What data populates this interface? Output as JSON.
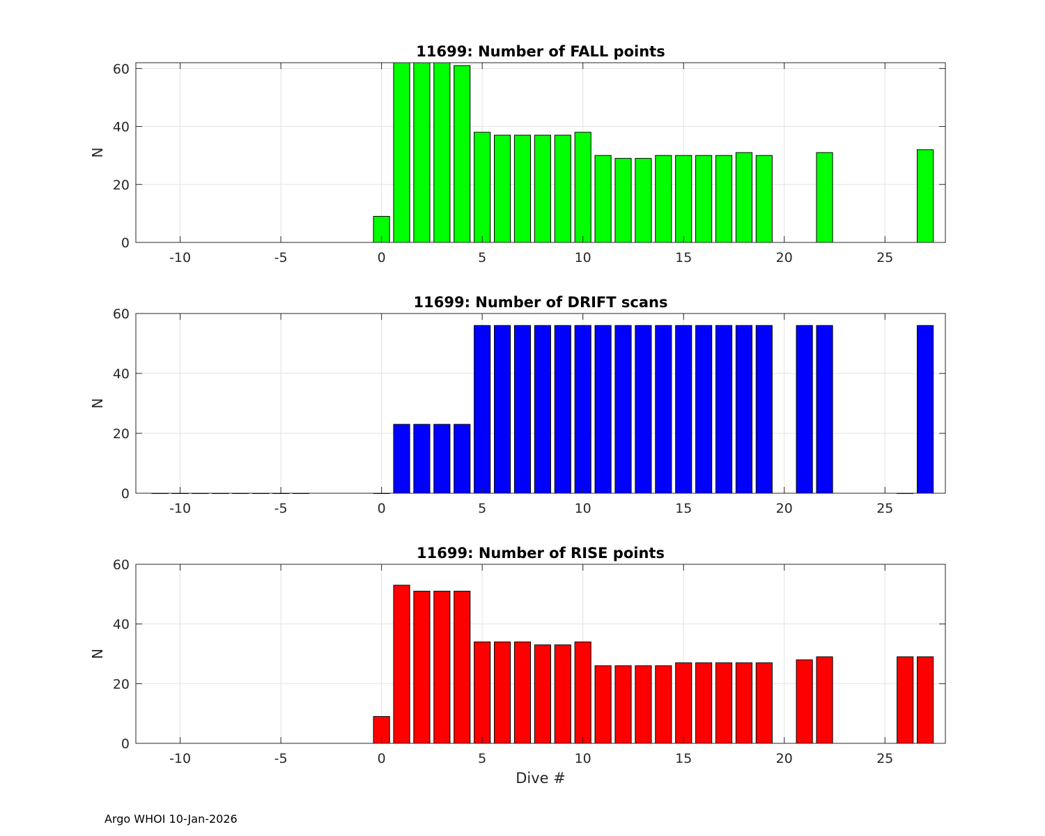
{
  "footer": "Argo WHOI 10-Jan-2026",
  "chart_data": [
    {
      "type": "bar",
      "title": "11699: Number of FALL points",
      "xlabel": "",
      "ylabel": "N",
      "color": "#00ff00",
      "xlim": [
        -12.2,
        28
      ],
      "ylim": [
        0,
        62
      ],
      "xticks": [
        -10,
        -5,
        0,
        5,
        10,
        15,
        20,
        25
      ],
      "xtick_labels": [
        "-10",
        "-5",
        "0",
        "5",
        "10",
        "15",
        "20",
        "25"
      ],
      "yticks": [
        0,
        20,
        40,
        60
      ],
      "ytick_labels": [
        "0",
        "20",
        "40",
        "60"
      ],
      "grid": true,
      "x": [
        0,
        1,
        2,
        3,
        4,
        5,
        6,
        7,
        8,
        9,
        10,
        11,
        12,
        13,
        14,
        15,
        16,
        17,
        18,
        19,
        22,
        27
      ],
      "values": [
        9,
        62,
        62,
        62,
        61,
        38,
        37,
        37,
        37,
        37,
        38,
        30,
        29,
        29,
        30,
        30,
        30,
        30,
        31,
        30,
        31,
        32
      ]
    },
    {
      "type": "bar",
      "title": "11699: Number of DRIFT scans",
      "xlabel": "",
      "ylabel": "N",
      "color": "#0000ff",
      "xlim": [
        -12.2,
        28
      ],
      "ylim": [
        0,
        60
      ],
      "xticks": [
        -10,
        -5,
        0,
        5,
        10,
        15,
        20,
        25
      ],
      "xtick_labels": [
        "-10",
        "-5",
        "0",
        "5",
        "10",
        "15",
        "20",
        "25"
      ],
      "yticks": [
        0,
        20,
        40,
        60
      ],
      "ytick_labels": [
        "0",
        "20",
        "40",
        "60"
      ],
      "grid": true,
      "x": [
        -11,
        -10,
        -9,
        -8,
        -7,
        -6,
        -5,
        -4,
        0,
        1,
        2,
        3,
        4,
        5,
        6,
        7,
        8,
        9,
        10,
        11,
        12,
        13,
        14,
        15,
        16,
        17,
        18,
        19,
        21,
        22,
        26,
        27
      ],
      "values": [
        0,
        0,
        0,
        0,
        0,
        0,
        0,
        0,
        0,
        23,
        23,
        23,
        23,
        56,
        56,
        56,
        56,
        56,
        56,
        56,
        56,
        56,
        56,
        56,
        56,
        56,
        56,
        56,
        56,
        56,
        0,
        56
      ]
    },
    {
      "type": "bar",
      "title": "11699: Number of RISE points",
      "xlabel": "Dive #",
      "ylabel": "N",
      "color": "#ff0000",
      "xlim": [
        -12.2,
        28
      ],
      "ylim": [
        0,
        60
      ],
      "xticks": [
        -10,
        -5,
        0,
        5,
        10,
        15,
        20,
        25
      ],
      "xtick_labels": [
        "-10",
        "-5",
        "0",
        "5",
        "10",
        "15",
        "20",
        "25"
      ],
      "yticks": [
        0,
        20,
        40,
        60
      ],
      "ytick_labels": [
        "0",
        "20",
        "40",
        "60"
      ],
      "grid": true,
      "x": [
        0,
        1,
        2,
        3,
        4,
        5,
        6,
        7,
        8,
        9,
        10,
        11,
        12,
        13,
        14,
        15,
        16,
        17,
        18,
        19,
        21,
        22,
        26,
        27
      ],
      "values": [
        9,
        53,
        51,
        51,
        51,
        34,
        34,
        34,
        33,
        33,
        34,
        26,
        26,
        26,
        26,
        27,
        27,
        27,
        27,
        27,
        28,
        29,
        29,
        29
      ]
    }
  ]
}
